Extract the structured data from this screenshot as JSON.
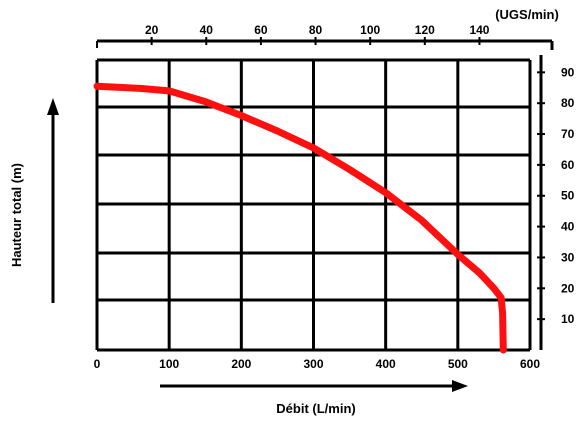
{
  "chart_data": {
    "type": "line",
    "xlabel": "Débit (L/min)",
    "ylabel": "Hauteur total (m)",
    "x2label": "(UGS/min)",
    "xlim": [
      0,
      600
    ],
    "ylim": [
      0,
      94
    ],
    "x2lim": [
      0,
      158.5
    ],
    "x_ticks": [
      0,
      100,
      200,
      300,
      400,
      500,
      600
    ],
    "x2_ticks": [
      20,
      40,
      60,
      80,
      100,
      120,
      140
    ],
    "y_ticks": [
      10,
      20,
      30,
      40,
      50,
      60,
      70,
      80,
      90
    ],
    "grid": true,
    "colors": {
      "curve": "#ff1010",
      "grid": "#000000"
    },
    "series": [
      {
        "name": "",
        "x": [
          0,
          60,
          100,
          150,
          200,
          250,
          300,
          350,
          400,
          450,
          500,
          530,
          550,
          560,
          562,
          563
        ],
        "y": [
          85.5,
          84.8,
          84,
          80.5,
          76,
          71,
          65.5,
          58.5,
          51,
          42,
          31,
          25,
          20,
          17,
          12,
          0
        ]
      }
    ]
  }
}
